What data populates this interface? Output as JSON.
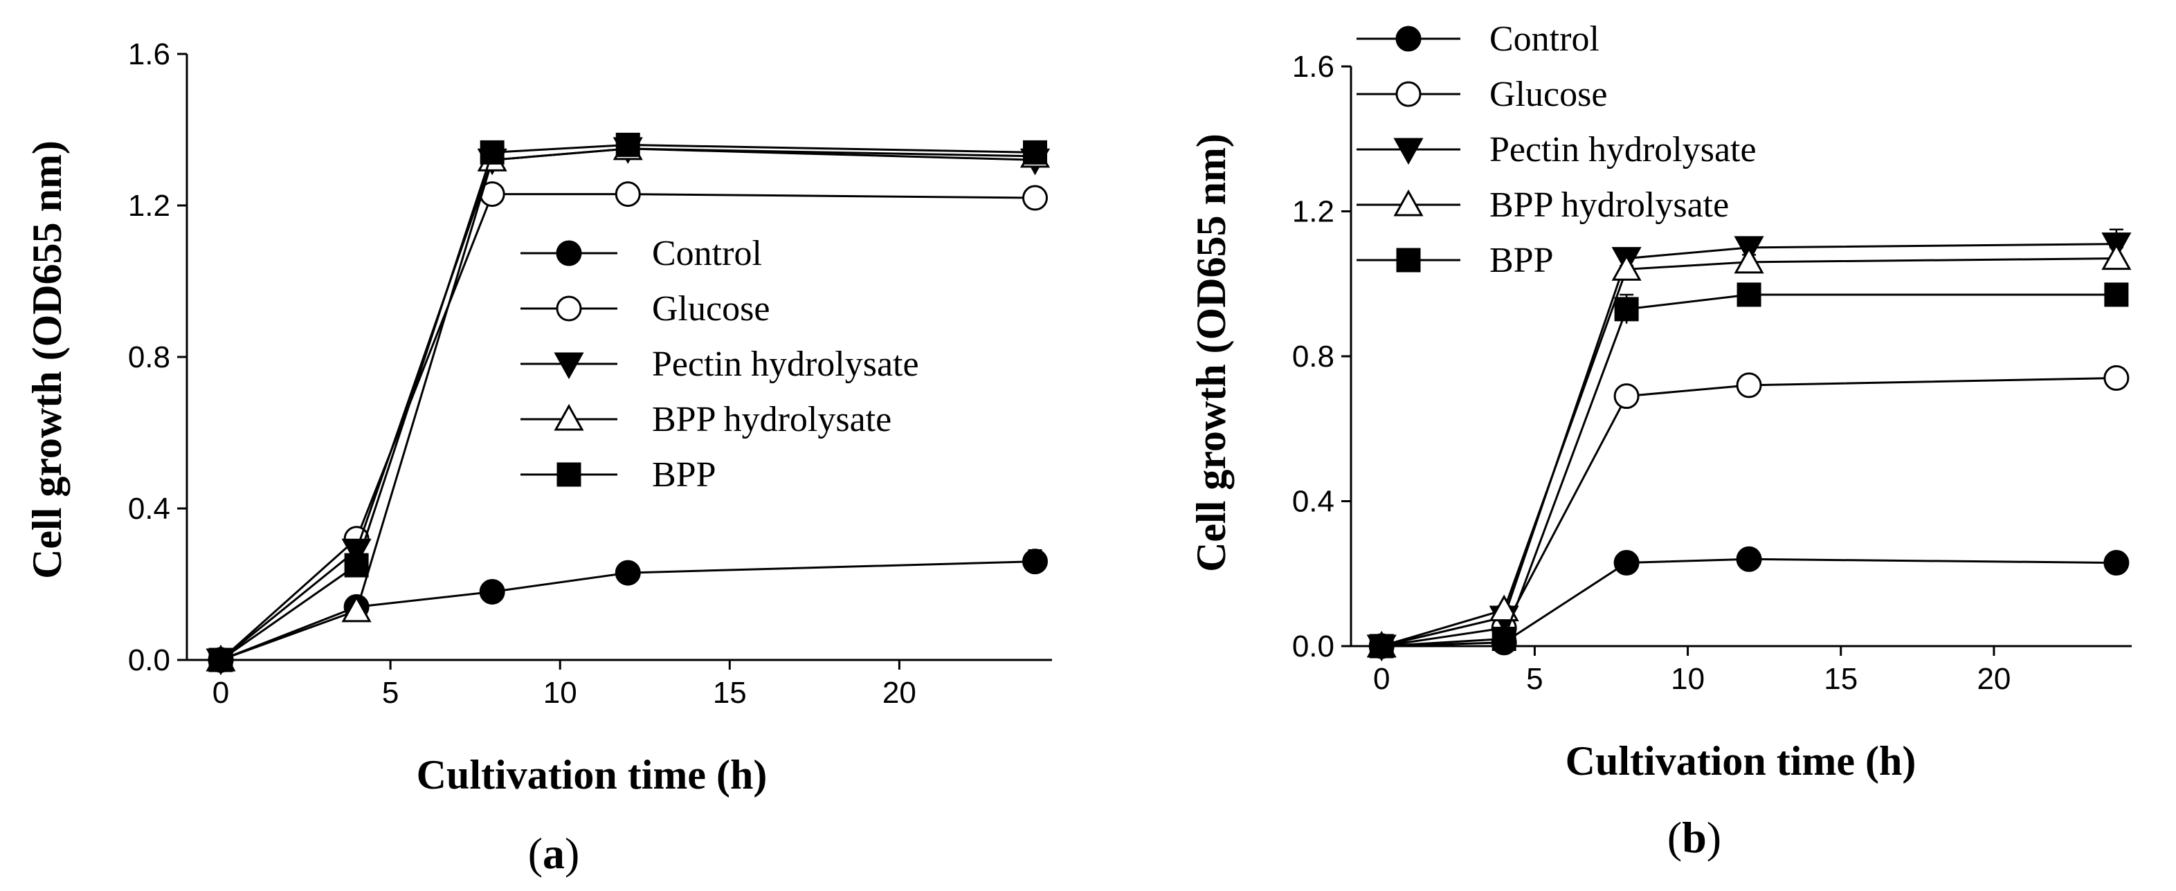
{
  "chart_data": [
    {
      "type": "line",
      "panel_label": "a",
      "xlabel": "Cultivation time (h)",
      "ylabel": "Cell growth (OD655 nm)",
      "xlim": [
        -1,
        24.5
      ],
      "ylim": [
        0,
        1.6
      ],
      "xticks": [
        0,
        5,
        10,
        15,
        20
      ],
      "yticks": [
        0.0,
        0.4,
        0.8,
        1.2,
        1.6
      ],
      "ytick_labels": [
        "0.0",
        "0.4",
        "0.8",
        "1.2",
        "1.6"
      ],
      "grid": false,
      "legend_position": "center-right",
      "x": [
        0,
        4,
        8,
        12,
        24
      ],
      "series": [
        {
          "name": "Control",
          "marker": "circle-filled",
          "values": [
            0.0,
            0.14,
            0.18,
            0.23,
            0.26
          ],
          "errors": [
            0.01,
            0.01,
            0.01,
            0.02,
            0.03
          ]
        },
        {
          "name": "Glucose",
          "marker": "circle-open",
          "values": [
            0.0,
            0.32,
            1.23,
            1.23,
            1.22
          ],
          "errors": [
            0.01,
            0.01,
            0.01,
            0.01,
            0.01
          ]
        },
        {
          "name": "Pectin hydrolysate",
          "marker": "triangle-down-filled",
          "values": [
            0.0,
            0.29,
            1.32,
            1.35,
            1.32
          ],
          "errors": [
            0.01,
            0.02,
            0.01,
            0.02,
            0.02
          ]
        },
        {
          "name": "BPP hydrolysate",
          "marker": "triangle-up-open",
          "values": [
            0.0,
            0.13,
            1.32,
            1.35,
            1.33
          ],
          "errors": [
            0.01,
            0.01,
            0.01,
            0.02,
            0.01
          ]
        },
        {
          "name": "BPP",
          "marker": "square-filled",
          "values": [
            0.0,
            0.25,
            1.34,
            1.36,
            1.34
          ],
          "errors": [
            0.01,
            0.02,
            0.01,
            0.01,
            0.01
          ]
        }
      ]
    },
    {
      "type": "line",
      "panel_label": "b",
      "xlabel": "Cultivation time (h)",
      "ylabel": "Cell growth (OD655 nm)",
      "xlim": [
        -1,
        24.5
      ],
      "ylim": [
        0,
        1.6
      ],
      "xticks": [
        0,
        5,
        10,
        15,
        20
      ],
      "yticks": [
        0.0,
        0.4,
        0.8,
        1.2,
        1.6
      ],
      "ytick_labels": [
        "0.0",
        "0.4",
        "0.8",
        "1.2",
        "1.6"
      ],
      "grid": false,
      "legend_position": "top-left",
      "x": [
        0,
        4,
        8,
        12,
        24
      ],
      "series": [
        {
          "name": "Control",
          "marker": "circle-filled",
          "values": [
            0.0,
            0.01,
            0.23,
            0.24,
            0.23
          ],
          "errors": [
            0.01,
            0.01,
            0.01,
            0.01,
            0.01
          ]
        },
        {
          "name": "Glucose",
          "marker": "circle-open",
          "values": [
            0.0,
            0.05,
            0.69,
            0.72,
            0.74
          ],
          "errors": [
            0.01,
            0.01,
            0.01,
            0.01,
            0.01
          ]
        },
        {
          "name": "Pectin hydrolysate",
          "marker": "triangle-down-filled",
          "values": [
            0.0,
            0.08,
            1.07,
            1.1,
            1.11
          ],
          "errors": [
            0.01,
            0.01,
            0.01,
            0.02,
            0.04
          ]
        },
        {
          "name": "BPP hydrolysate",
          "marker": "triangle-up-open",
          "values": [
            0.0,
            0.1,
            1.04,
            1.06,
            1.07
          ],
          "errors": [
            0.01,
            0.01,
            0.01,
            0.02,
            0.03
          ]
        },
        {
          "name": "BPP",
          "marker": "square-filled",
          "values": [
            0.0,
            0.02,
            0.93,
            0.97,
            0.97
          ],
          "errors": [
            0.01,
            0.01,
            0.04,
            0.02,
            0.03
          ]
        }
      ]
    }
  ]
}
